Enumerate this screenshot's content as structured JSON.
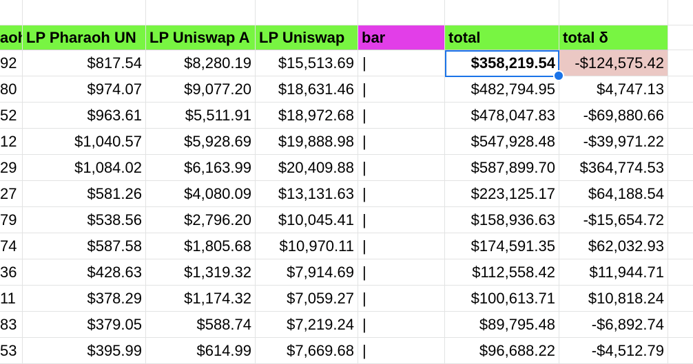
{
  "headers": {
    "col_a": "aoh",
    "col_b": "LP Pharaoh UN",
    "col_c": "LP Uniswap A",
    "col_d": "LP Uniswap",
    "col_e": "bar",
    "col_f": "total",
    "col_g": "total δ"
  },
  "colors": {
    "header_green": "#78f542",
    "header_magenta": "#e23ee8",
    "negative_highlight": "#ebc8c4",
    "selection_blue": "#1a73e8"
  },
  "selected_cell": "total row 1",
  "rows": [
    {
      "a": "92",
      "b": "$817.54",
      "c": "$8,280.19",
      "d": "$15,513.69",
      "e": "|",
      "f": "$358,219.54",
      "g": "-$124,575.42"
    },
    {
      "a": "80",
      "b": "$974.07",
      "c": "$9,077.20",
      "d": "$18,631.46",
      "e": "|",
      "f": "$482,794.95",
      "g": "$4,747.13"
    },
    {
      "a": "52",
      "b": "$963.61",
      "c": "$5,511.91",
      "d": "$18,972.68",
      "e": "|",
      "f": "$478,047.83",
      "g": "-$69,880.66"
    },
    {
      "a": "12",
      "b": "$1,040.57",
      "c": "$5,928.69",
      "d": "$19,888.98",
      "e": "|",
      "f": "$547,928.48",
      "g": "-$39,971.22"
    },
    {
      "a": "29",
      "b": "$1,084.02",
      "c": "$6,163.99",
      "d": "$20,409.88",
      "e": "|",
      "f": "$587,899.70",
      "g": "$364,774.53"
    },
    {
      "a": "27",
      "b": "$581.26",
      "c": "$4,080.09",
      "d": "$13,131.63",
      "e": "|",
      "f": "$223,125.17",
      "g": "$64,188.54"
    },
    {
      "a": "79",
      "b": "$538.56",
      "c": "$2,796.20",
      "d": "$10,045.41",
      "e": "|",
      "f": "$158,936.63",
      "g": "-$15,654.72"
    },
    {
      "a": "74",
      "b": "$587.58",
      "c": "$1,805.68",
      "d": "$10,970.11",
      "e": "|",
      "f": "$174,591.35",
      "g": "$62,032.93"
    },
    {
      "a": "36",
      "b": "$428.63",
      "c": "$1,319.32",
      "d": "$7,914.69",
      "e": "|",
      "f": "$112,558.42",
      "g": "$11,944.71"
    },
    {
      "a": "11",
      "b": "$378.29",
      "c": "$1,174.32",
      "d": "$7,059.27",
      "e": "|",
      "f": "$100,613.71",
      "g": "$10,818.24"
    },
    {
      "a": "83",
      "b": "$379.05",
      "c": "$588.74",
      "d": "$7,219.24",
      "e": "|",
      "f": "$89,795.48",
      "g": "-$6,892.74"
    },
    {
      "a": "53",
      "b": "$395.99",
      "c": "$614.99",
      "d": "$7,669.68",
      "e": "|",
      "f": "$96,688.22",
      "g": "-$4,512.79"
    }
  ]
}
